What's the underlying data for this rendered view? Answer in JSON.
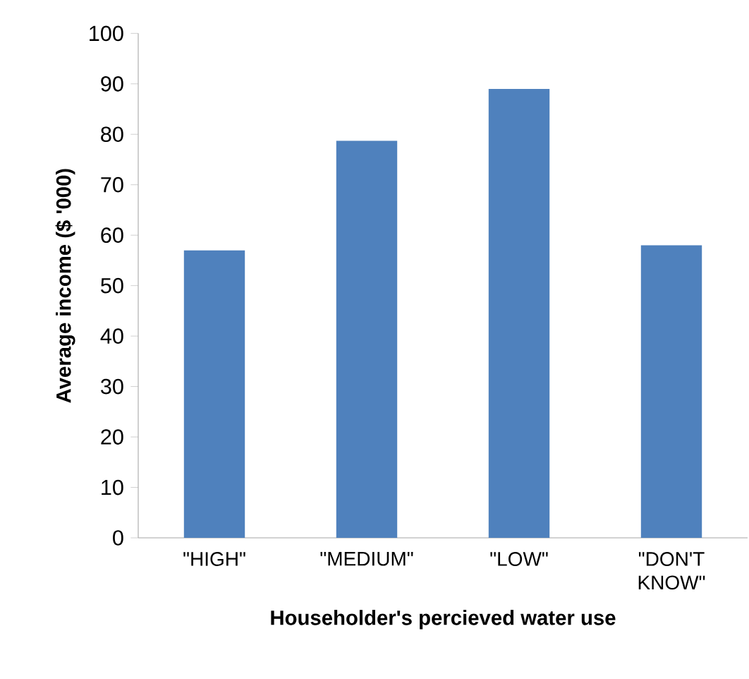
{
  "chart_data": {
    "type": "bar",
    "xlabel": "Householder's percieved water use",
    "ylabel": "Average income ($ '000)",
    "categories": [
      "\"HIGH\"",
      "\"MEDIUM\"",
      "\"LOW\"",
      "\"DON'T KNOW\""
    ],
    "values": [
      57,
      78.7,
      89,
      58
    ],
    "color": "#4f81bd",
    "ylim": [
      0,
      100
    ],
    "yticks": [
      0,
      10,
      20,
      30,
      40,
      50,
      60,
      70,
      80,
      90,
      100
    ]
  }
}
